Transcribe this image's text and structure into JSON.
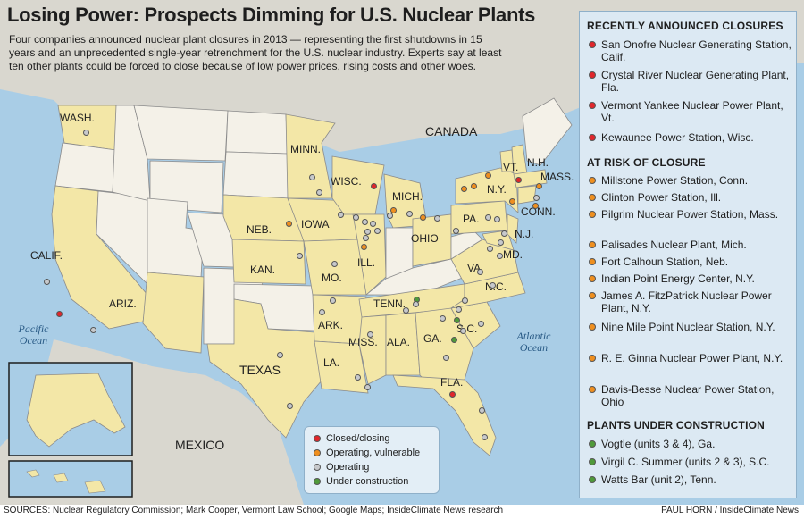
{
  "title": "Losing Power: Prospects Dimming for U.S. Nuclear Plants",
  "intro": "Four companies announced nuclear plant closures in 2013 — representing the first shutdowns in 15 years and an unprecedented single-year retrenchment for the U.S. nuclear industry. Experts say at least ten other plants could be forced to close because of low power prices, rising costs and other woes.",
  "colors": {
    "closed": "#e0262b",
    "vulnerable": "#ef8f1f",
    "operating": "#c7c9cc",
    "construction": "#4f9a3a",
    "state_nuclear": "#f3e7a7",
    "state_other": "#f4f1e8",
    "water": "#a9cde6",
    "land": "#d9d7cf"
  },
  "map": {
    "labels": {
      "wash": "WASH.",
      "calif": "CALIF.",
      "ariz": "ARIZ.",
      "minn": "MINN.",
      "wisc": "WISC.",
      "mich": "MICH.",
      "iowa": "IOWA",
      "neb": "NEB.",
      "kan": "KAN.",
      "mo": "MO.",
      "ill": "ILL.",
      "ohio": "OHIO",
      "pa": "PA.",
      "ny": "N.Y.",
      "vt": "VT.",
      "nh": "N.H.",
      "mass": "MASS.",
      "conn": "CONN.",
      "nj": "N.J.",
      "md": "MD.",
      "va": "VA.",
      "nc": "N.C.",
      "tenn": "TENN.",
      "ark": "ARK.",
      "miss": "MISS.",
      "ala": "ALA.",
      "ga": "GA.",
      "sc": "S.C.",
      "la": "LA.",
      "fla": "FLA.",
      "texas": "TEXAS",
      "canada": "CANADA",
      "mexico": "MEXICO",
      "pacific": "Pacific Ocean",
      "atlantic": "Atlantic Ocean"
    }
  },
  "panel": {
    "closures_heading": "RECENTLY ANNOUNCED CLOSURES",
    "closures": [
      "San Onofre Nuclear Generating Station, Calif.",
      "Crystal River Nuclear Generating Plant, Fla.",
      "Vermont Yankee Nuclear Power Plant, Vt.",
      "Kewaunee Power Station, Wisc."
    ],
    "risk_heading": "AT RISK OF CLOSURE",
    "risk": [
      "Millstone Power Station, Conn.",
      "Clinton Power Station, Ill.",
      "Pilgrim Nuclear Power Station, Mass.",
      "Palisades Nuclear Plant, Mich.",
      "Fort Calhoun Station, Neb.",
      "Indian Point Energy Center, N.Y.",
      "James A. FitzPatrick Nuclear Power Plant, N.Y.",
      "Nine Mile Point Nuclear Station, N.Y.",
      "R. E. Ginna Nuclear Power Plant, N.Y.",
      "Davis-Besse Nuclear Power Station, Ohio"
    ],
    "construction_heading": "PLANTS UNDER CONSTRUCTION",
    "construction": [
      "Vogtle (units 3 & 4), Ga.",
      "Virgil C. Summer (units 2 & 3), S.C.",
      "Watts Bar (unit 2), Tenn."
    ]
  },
  "legend": {
    "closed": "Closed/closing",
    "vulnerable": "Operating, vulnerable",
    "operating": "Operating",
    "construction": "Under construction"
  },
  "footer": {
    "sources": "SOURCES: Nuclear Regulatory Commission; Mark Cooper, Vermont Law School; Google Maps; InsideClimate News research",
    "credit": "PAUL HORN / InsideClimate News"
  }
}
